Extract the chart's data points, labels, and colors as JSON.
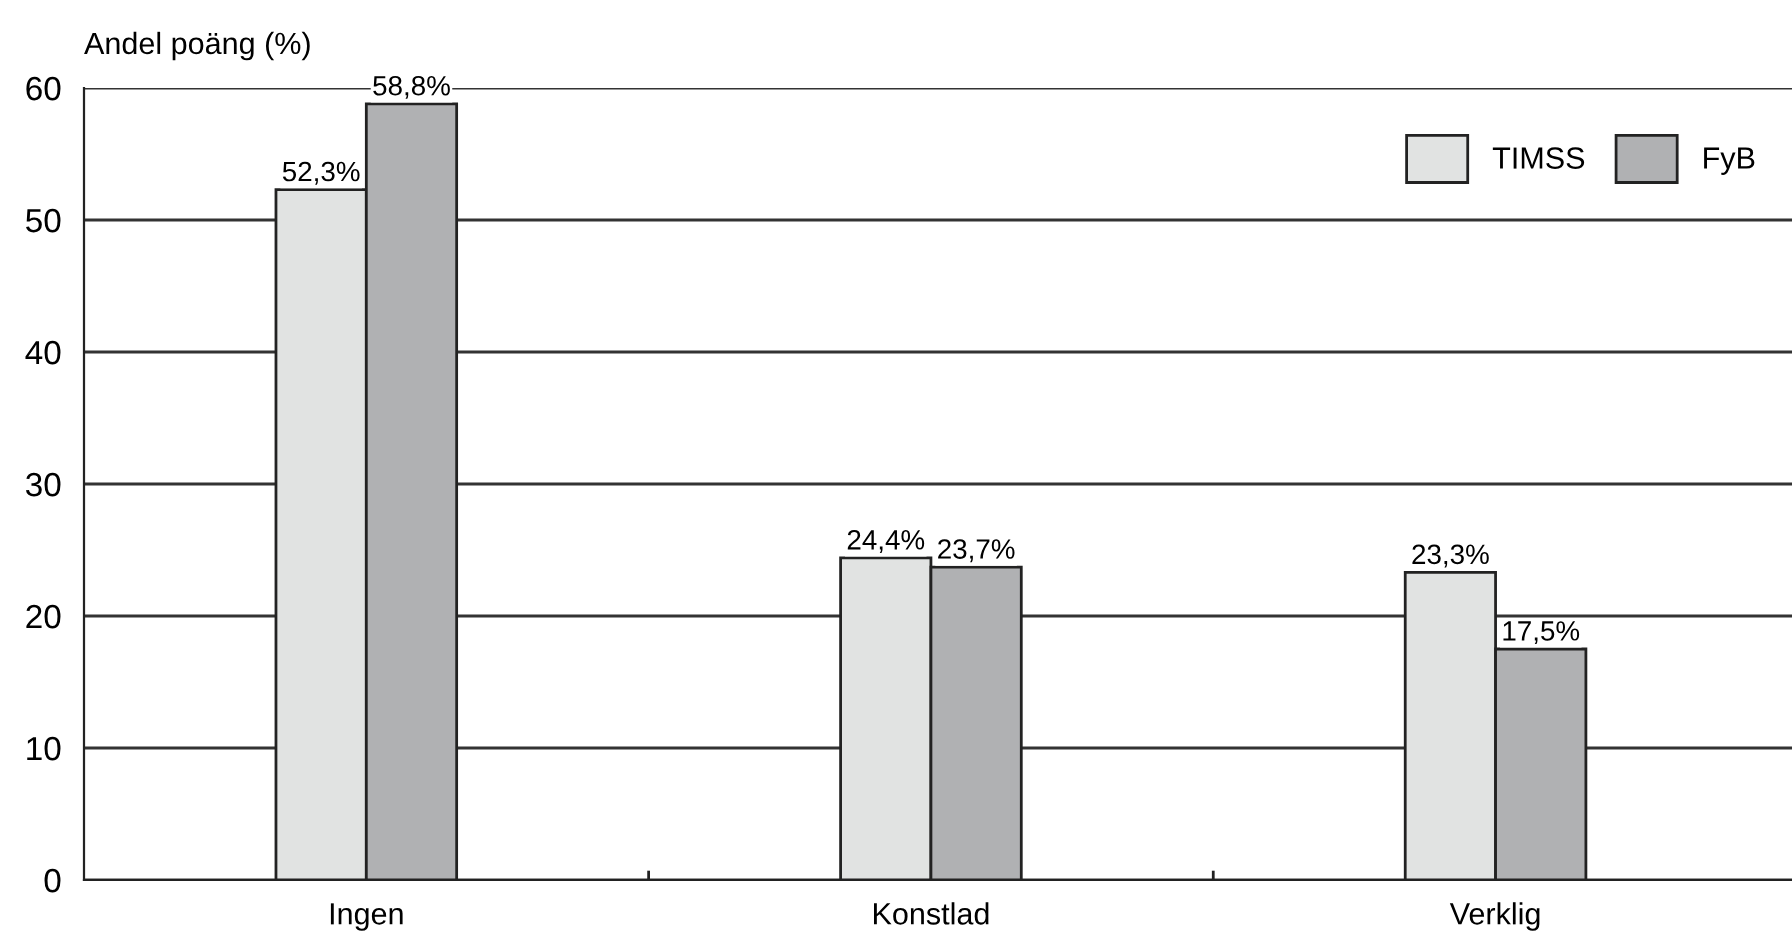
{
  "chart_data": {
    "type": "bar",
    "ylabel": "Andel poäng (%)",
    "categories": [
      "Ingen",
      "Konstlad",
      "Verklig"
    ],
    "series": [
      {
        "name": "TIMSS",
        "color": "#e1e3e2",
        "values": [
          52.3,
          24.4,
          23.3
        ],
        "value_labels": [
          "52,3%",
          "24,4%",
          "23,3%"
        ]
      },
      {
        "name": "FyB",
        "color": "#b0b1b3",
        "values": [
          58.8,
          23.7,
          17.5
        ],
        "value_labels": [
          "58,8%",
          "23,7%",
          "17,5%"
        ]
      }
    ],
    "ylim": [
      0,
      60
    ],
    "yticks": [
      0,
      10,
      20,
      30,
      40,
      50,
      60
    ],
    "grid": "y",
    "legend": "top right"
  }
}
